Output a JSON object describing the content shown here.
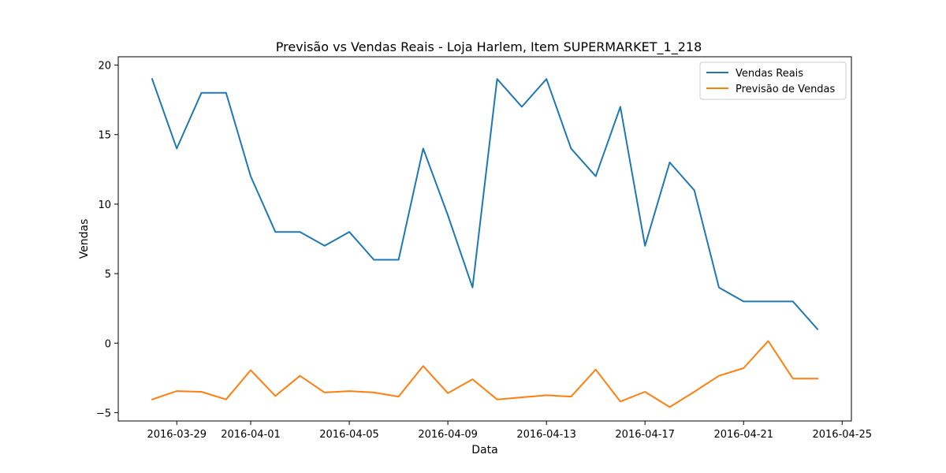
{
  "chart_data": {
    "type": "line",
    "title": "Previsão vs Vendas Reais - Loja Harlem, Item SUPERMARKET_1_218",
    "xlabel": "Data",
    "ylabel": "Vendas",
    "x": [
      "2016-03-28",
      "2016-03-29",
      "2016-03-30",
      "2016-03-31",
      "2016-04-01",
      "2016-04-02",
      "2016-04-03",
      "2016-04-04",
      "2016-04-05",
      "2016-04-06",
      "2016-04-07",
      "2016-04-08",
      "2016-04-09",
      "2016-04-10",
      "2016-04-11",
      "2016-04-12",
      "2016-04-13",
      "2016-04-14",
      "2016-04-15",
      "2016-04-16",
      "2016-04-17",
      "2016-04-18",
      "2016-04-19",
      "2016-04-20",
      "2016-04-21",
      "2016-04-22",
      "2016-04-23",
      "2016-04-24"
    ],
    "xlim": [
      "2016-03-26T15:00",
      "2016-04-25T09:00"
    ],
    "ylim": [
      -5.6,
      20.6
    ],
    "x_ticks": [
      "2016-03-29",
      "2016-04-01",
      "2016-04-05",
      "2016-04-09",
      "2016-04-13",
      "2016-04-17",
      "2016-04-21",
      "2016-04-25"
    ],
    "y_ticks": [
      -5,
      0,
      5,
      10,
      15,
      20
    ],
    "series": [
      {
        "name": "Vendas Reais",
        "color": "#1f77b4",
        "values": [
          19,
          14,
          18,
          18,
          12,
          8,
          8,
          7,
          8,
          6,
          6,
          14,
          9.2,
          4,
          19,
          17,
          19,
          14,
          12,
          17,
          7,
          13,
          11,
          4,
          3,
          3,
          3,
          1
        ]
      },
      {
        "name": "Previsão de Vendas",
        "color": "#ff7f0e",
        "values": [
          -4.05,
          -3.45,
          -3.5,
          -4.05,
          -1.95,
          -3.8,
          -2.35,
          -3.55,
          -3.45,
          -3.55,
          -3.85,
          -1.65,
          -3.6,
          -2.6,
          -4.05,
          -3.9,
          -3.75,
          -3.85,
          -1.9,
          -4.2,
          -3.5,
          -4.6,
          -3.5,
          -2.35,
          -1.8,
          0.15,
          -2.55,
          -2.55
        ]
      }
    ],
    "legend_position": "top-right",
    "grid": false
  }
}
